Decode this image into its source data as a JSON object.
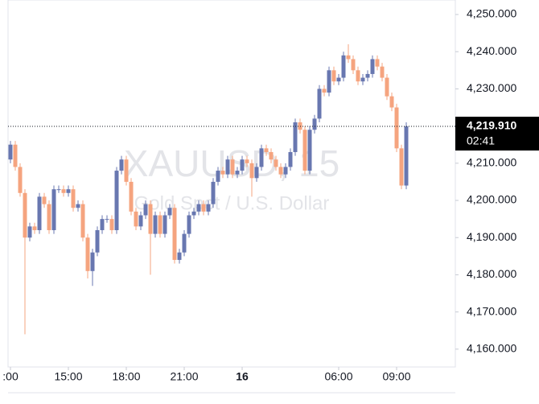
{
  "chart_data": {
    "type": "candlestick",
    "title": "XAUUSD, 15",
    "subtitle": "Gold Spot / U.S. Dollar",
    "up_color": "#6877b0",
    "down_color": "#f5a47f",
    "x": [
      "12:00",
      "12:15",
      "12:30",
      "12:45",
      "13:00",
      "13:15",
      "13:30",
      "13:45",
      "14:00",
      "14:15",
      "14:30",
      "14:45",
      "15:00",
      "15:15",
      "15:30",
      "15:45",
      "16:00",
      "16:15",
      "16:30",
      "16:45",
      "17:00",
      "17:15",
      "17:30",
      "17:45",
      "18:00",
      "18:15",
      "18:30",
      "18:45",
      "19:00",
      "19:15",
      "19:30",
      "19:45",
      "20:00",
      "20:15",
      "20:30",
      "20:45",
      "21:00",
      "21:15",
      "21:30",
      "21:45",
      "22:00",
      "22:15",
      "22:30",
      "22:45",
      "23:00",
      "23:15",
      "23:30",
      "23:45",
      "01:00",
      "01:15",
      "01:30",
      "01:45",
      "02:00",
      "02:15",
      "02:30",
      "02:45",
      "03:00",
      "03:15",
      "03:30",
      "03:45",
      "04:00",
      "04:15",
      "04:30",
      "04:45",
      "05:00",
      "05:15",
      "05:30",
      "05:45",
      "06:00",
      "06:15",
      "06:30",
      "06:45",
      "07:00",
      "07:15",
      "07:30",
      "07:45",
      "08:00",
      "08:15",
      "08:30",
      "08:45",
      "09:00",
      "09:15",
      "09:30"
    ],
    "open": [
      4211,
      4215,
      4209,
      4202,
      4190,
      4193,
      4192,
      4201,
      4199,
      4192,
      4203,
      4203,
      4202,
      4203,
      4198,
      4199,
      4190,
      4181,
      4186,
      4192,
      4195,
      4195,
      4192,
      4208,
      4211,
      4205,
      4197,
      4193,
      4196,
      4199,
      4191,
      4196,
      4191,
      4196,
      4198,
      4184,
      4186,
      4191,
      4196,
      4197,
      4199,
      4197,
      4199,
      4205,
      4208,
      4207,
      4211,
      4207,
      4208,
      4211,
      4210,
      4206,
      4209,
      4214,
      4213,
      4211,
      4209,
      4207,
      4209,
      4213,
      4221,
      4219,
      4208,
      4219,
      4222,
      4230,
      4229,
      4235,
      4232,
      4233,
      4239,
      4238,
      4235,
      4232,
      4233,
      4234,
      4238,
      4236,
      4233,
      4228,
      4225,
      4214,
      4204
    ],
    "high": [
      4216,
      4216,
      4210,
      4203,
      4194,
      4194,
      4202,
      4202,
      4200,
      4204,
      4204,
      4204,
      4204,
      4204,
      4200,
      4200,
      4191,
      4187,
      4193,
      4196,
      4196,
      4196,
      4209,
      4212,
      4212,
      4206,
      4198,
      4197,
      4200,
      4200,
      4197,
      4197,
      4197,
      4199,
      4199,
      4187,
      4192,
      4197,
      4198,
      4200,
      4200,
      4200,
      4206,
      4209,
      4209,
      4212,
      4212,
      4209,
      4212,
      4212,
      4211,
      4210,
      4215,
      4215,
      4214,
      4212,
      4210,
      4210,
      4214,
      4222,
      4222,
      4220,
      4220,
      4223,
      4231,
      4231,
      4236,
      4236,
      4234,
      4240,
      4242,
      4239,
      4236,
      4234,
      4235,
      4239,
      4239,
      4237,
      4234,
      4229,
      4226,
      4215,
      4221
    ],
    "low": [
      4210,
      4208,
      4201,
      4164,
      4189,
      4191,
      4191,
      4198,
      4191,
      4191,
      4202,
      4201,
      4201,
      4197,
      4197,
      4189,
      4179,
      4177,
      4185,
      4191,
      4194,
      4191,
      4191,
      4207,
      4204,
      4196,
      4192,
      4192,
      4195,
      4180,
      4190,
      4190,
      4190,
      4195,
      4183,
      4183,
      4185,
      4190,
      4195,
      4196,
      4196,
      4196,
      4198,
      4204,
      4206,
      4206,
      4206,
      4206,
      4207,
      4209,
      4201,
      4205,
      4208,
      4212,
      4210,
      4208,
      4206,
      4206,
      4208,
      4212,
      4218,
      4207,
      4207,
      4218,
      4221,
      4228,
      4228,
      4231,
      4231,
      4232,
      4237,
      4234,
      4231,
      4231,
      4232,
      4233,
      4235,
      4232,
      4227,
      4224,
      4213,
      4203,
      4203
    ],
    "close": [
      4215,
      4209,
      4202,
      4190,
      4193,
      4192,
      4201,
      4199,
      4192,
      4203,
      4203,
      4202,
      4203,
      4198,
      4199,
      4190,
      4181,
      4186,
      4192,
      4195,
      4195,
      4192,
      4208,
      4211,
      4205,
      4197,
      4193,
      4196,
      4199,
      4191,
      4196,
      4191,
      4196,
      4198,
      4184,
      4186,
      4191,
      4196,
      4197,
      4199,
      4197,
      4199,
      4205,
      4208,
      4207,
      4211,
      4207,
      4208,
      4211,
      4210,
      4206,
      4209,
      4214,
      4213,
      4211,
      4209,
      4207,
      4209,
      4213,
      4221,
      4219,
      4208,
      4219,
      4222,
      4230,
      4229,
      4235,
      4232,
      4233,
      4239,
      4238,
      4235,
      4232,
      4233,
      4234,
      4238,
      4236,
      4233,
      4228,
      4225,
      4214,
      4204,
      4219.91
    ],
    "xticks": [
      {
        "value": "12:00",
        "label": ":00"
      },
      "15:00",
      "18:00",
      "21:00",
      {
        "value": "01:00",
        "label": "16"
      },
      "06:00",
      "09:00"
    ],
    "ylim": [
      4155.2,
      4253.9
    ],
    "yticks": [
      {
        "value": 4160,
        "label": "4,160.000"
      },
      {
        "value": 4170,
        "label": "4,170.000"
      },
      {
        "value": 4180,
        "label": "4,180.000"
      },
      {
        "value": 4190,
        "label": "4,190.000"
      },
      {
        "value": 4200,
        "label": "4,200.000"
      },
      {
        "value": 4210,
        "label": "4,210.000"
      },
      {
        "value": 4220,
        "label": "4,220.000"
      },
      {
        "value": 4230,
        "label": "4,230.000"
      },
      {
        "value": 4240,
        "label": "4,240.000"
      },
      {
        "value": 4250,
        "label": "4,250.000"
      }
    ],
    "last_price": {
      "value": 4219.91,
      "label": "4,219.910"
    },
    "countdown": "02:41",
    "grid": false
  }
}
